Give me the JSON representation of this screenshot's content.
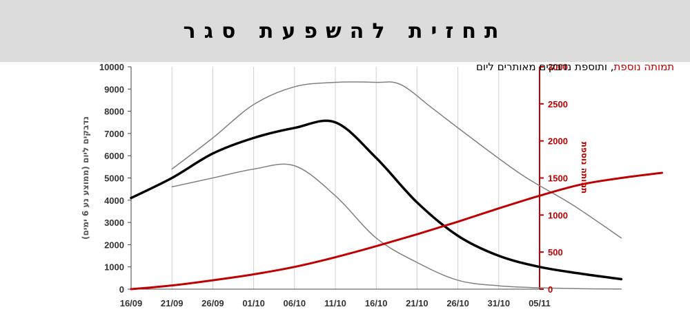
{
  "page_title": "תחזית להשפעת סגר",
  "chart_data": {
    "type": "line",
    "subtitle_red": "תמותה נוספת",
    "subtitle_black": ", ותוספת נדבקים מאותרים ליום",
    "ylabel_left": "נדבקים ליום (ממוצע נע 6 ימים)",
    "ylabel_right": "תמותה נוספת",
    "x_tick_labels": [
      "16/09",
      "21/09",
      "26/09",
      "01/10",
      "06/10",
      "11/10",
      "16/10",
      "21/10",
      "26/10",
      "31/10",
      "05/11"
    ],
    "ylim_left": [
      0,
      10000
    ],
    "ylim_right": [
      0,
      3000
    ],
    "y_ticks_left": [
      0,
      1000,
      2000,
      3000,
      4000,
      5000,
      6000,
      7000,
      8000,
      9000,
      10000
    ],
    "y_ticks_right": [
      0,
      500,
      1000,
      1500,
      2000,
      2500,
      3000
    ],
    "grid": "vertical",
    "colors": {
      "main": "#000000",
      "band": "#808080",
      "deaths": "#c00000",
      "grid": "#d0d0d0"
    },
    "series": [
      {
        "axis": "left",
        "style": "main",
        "points": [
          [
            0,
            4100
          ],
          [
            5,
            5000
          ],
          [
            10,
            6100
          ],
          [
            15,
            6800
          ],
          [
            20,
            7250
          ],
          [
            25,
            7500
          ],
          [
            30,
            5900
          ],
          [
            35,
            3900
          ],
          [
            40,
            2400
          ],
          [
            45,
            1500
          ],
          [
            50,
            1000
          ],
          [
            55,
            700
          ],
          [
            60,
            450
          ]
        ]
      },
      {
        "axis": "left",
        "style": "band",
        "points": [
          [
            5,
            5400
          ],
          [
            10,
            6800
          ],
          [
            15,
            8300
          ],
          [
            20,
            9100
          ],
          [
            25,
            9300
          ],
          [
            30,
            9300
          ],
          [
            33,
            9200
          ],
          [
            37,
            8100
          ],
          [
            42,
            6700
          ],
          [
            48,
            5100
          ],
          [
            54,
            3800
          ],
          [
            60,
            2300
          ]
        ]
      },
      {
        "axis": "left",
        "style": "band",
        "points": [
          [
            5,
            4600
          ],
          [
            10,
            5000
          ],
          [
            15,
            5400
          ],
          [
            20,
            5550
          ],
          [
            25,
            4200
          ],
          [
            30,
            2300
          ],
          [
            35,
            1200
          ],
          [
            40,
            400
          ],
          [
            45,
            150
          ],
          [
            50,
            60
          ],
          [
            55,
            20
          ],
          [
            60,
            5
          ]
        ]
      },
      {
        "axis": "right",
        "style": "deaths",
        "points": [
          [
            0,
            0
          ],
          [
            5,
            50
          ],
          [
            10,
            120
          ],
          [
            15,
            200
          ],
          [
            20,
            300
          ],
          [
            25,
            430
          ],
          [
            30,
            580
          ],
          [
            35,
            740
          ],
          [
            40,
            910
          ],
          [
            45,
            1090
          ],
          [
            50,
            1260
          ],
          [
            55,
            1410
          ],
          [
            60,
            1500
          ],
          [
            65,
            1570
          ]
        ]
      }
    ]
  }
}
